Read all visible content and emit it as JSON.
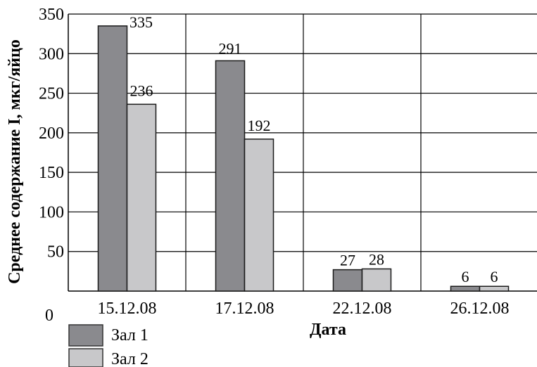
{
  "chart_data": {
    "type": "bar",
    "title": "",
    "xlabel": "Дата",
    "ylabel": "Среднее содержание I, мкг/яйцо",
    "categories": [
      "15.12.08",
      "17.12.08",
      "22.12.08",
      "26.12.08"
    ],
    "series": [
      {
        "name": "Зал 1",
        "values": [
          335,
          291,
          27,
          6
        ],
        "color": "#8a8a8e"
      },
      {
        "name": "Зал 2",
        "values": [
          236,
          192,
          28,
          6
        ],
        "color": "#c8c8ca"
      }
    ],
    "data_labels": {
      "s0": [
        "335",
        "291",
        "27",
        "6"
      ],
      "s1": [
        "236",
        "192",
        "28",
        "6"
      ]
    },
    "ylim": [
      0,
      350
    ],
    "yticks": [
      0,
      50,
      100,
      150,
      200,
      250,
      300,
      350
    ],
    "ytick_labels": [
      "0",
      "50",
      "100",
      "150",
      "200",
      "250",
      "300",
      "350"
    ],
    "grid": true,
    "legend_position": "bottom-left"
  }
}
